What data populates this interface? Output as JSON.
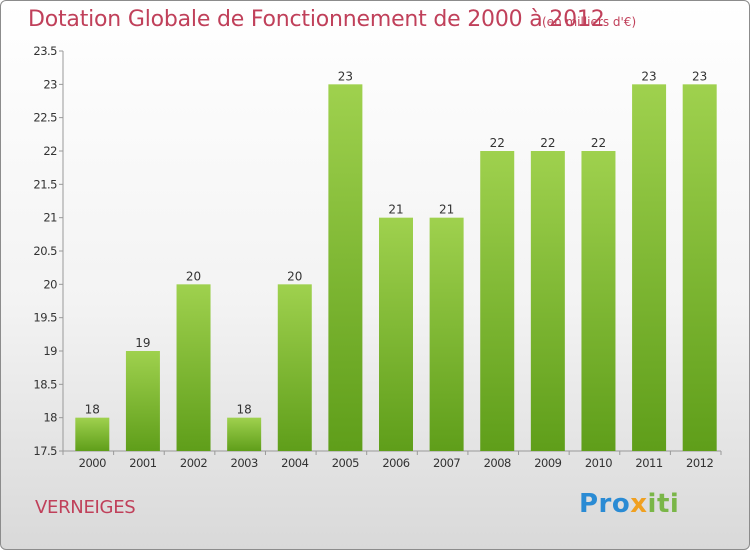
{
  "title": "Dotation Globale de Fonctionnement de 2000 à 2012",
  "subtitle": "(en milliers d'€)",
  "place": "VERNEIGES",
  "logo": {
    "part1": "Pro",
    "part2": "x",
    "part3": "iti"
  },
  "colors": {
    "bar_top": "#9fd14e",
    "bar_bottom": "#5f9e1a",
    "title": "#c0405a"
  },
  "chart_data": {
    "type": "bar",
    "title": "Dotation Globale de Fonctionnement de 2000 à 2012",
    "subtitle": "(en milliers d'€)",
    "categories": [
      "2000",
      "2001",
      "2002",
      "2003",
      "2004",
      "2005",
      "2006",
      "2007",
      "2008",
      "2009",
      "2010",
      "2011",
      "2012"
    ],
    "values": [
      18,
      19,
      20,
      18,
      20,
      23,
      21,
      21,
      22,
      22,
      22,
      23,
      23
    ],
    "labels": [
      "18",
      "19",
      "20",
      "18",
      "20",
      "23",
      "21",
      "21",
      "22",
      "22",
      "22",
      "23",
      "23"
    ],
    "ylim": [
      17.5,
      23.5
    ],
    "yticks": [
      "17.5",
      "18",
      "18.5",
      "19",
      "19.5",
      "20",
      "20.5",
      "21",
      "21.5",
      "22",
      "22.5",
      "23",
      "23.5"
    ],
    "grid": false
  }
}
